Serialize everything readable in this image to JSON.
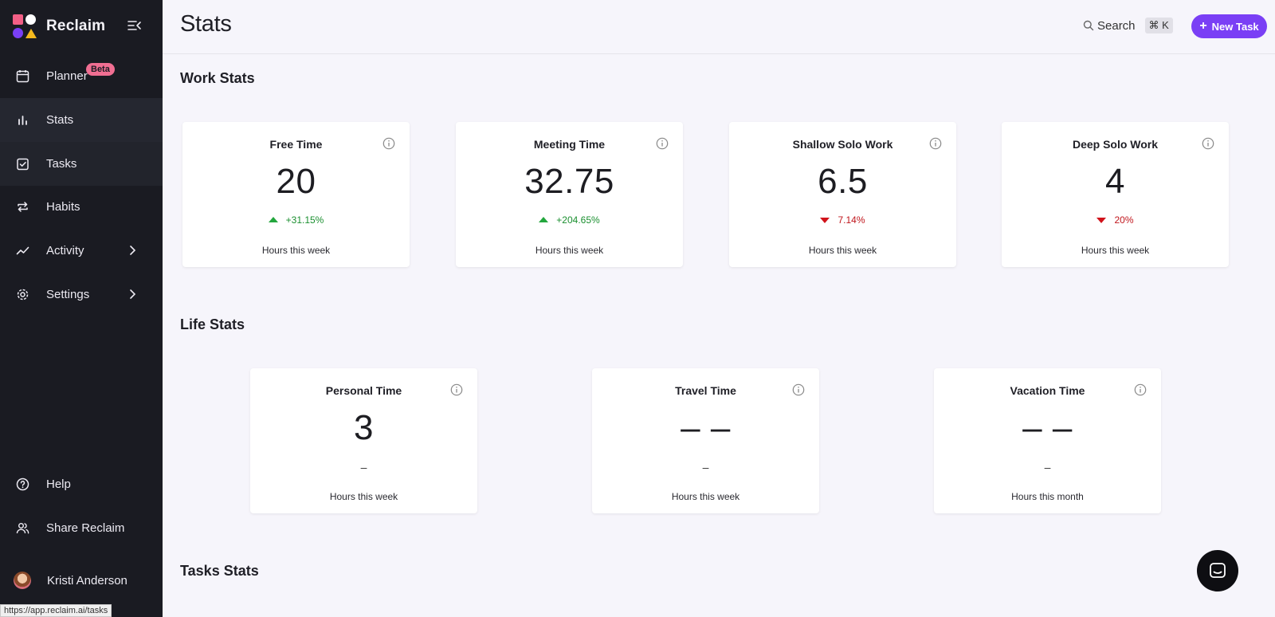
{
  "sidebar": {
    "brand": "Reclaim",
    "items": [
      {
        "label": "Planner",
        "badge": "Beta"
      },
      {
        "label": "Stats"
      },
      {
        "label": "Tasks"
      },
      {
        "label": "Habits"
      },
      {
        "label": "Activity"
      },
      {
        "label": "Settings"
      },
      {
        "label": "Help"
      },
      {
        "label": "Share Reclaim"
      }
    ],
    "user": "Kristi Anderson"
  },
  "status_url": "https://app.reclaim.ai/tasks",
  "header": {
    "title": "Stats",
    "search_label": "Search",
    "shortcut": "⌘ K",
    "new_task_label": "New Task"
  },
  "work_stats": {
    "title": "Work Stats",
    "cards": [
      {
        "title": "Free Time",
        "value": "20",
        "change": "+31.15%",
        "direction": "up",
        "sub": "Hours this week"
      },
      {
        "title": "Meeting Time",
        "value": "32.75",
        "change": "+204.65%",
        "direction": "up",
        "sub": "Hours this week"
      },
      {
        "title": "Shallow Solo Work",
        "value": "6.5",
        "change": "7.14%",
        "direction": "down",
        "sub": "Hours this week"
      },
      {
        "title": "Deep Solo Work",
        "value": "4",
        "change": "20%",
        "direction": "down",
        "sub": "Hours this week"
      }
    ]
  },
  "life_stats": {
    "title": "Life Stats",
    "cards": [
      {
        "title": "Personal Time",
        "value": "3",
        "change": "–",
        "direction": "none",
        "sub": "Hours this week"
      },
      {
        "title": "Travel Time",
        "value": "– –",
        "change": "–",
        "direction": "none",
        "sub": "Hours this week"
      },
      {
        "title": "Vacation Time",
        "value": "– –",
        "change": "–",
        "direction": "none",
        "sub": "Hours this month"
      }
    ]
  },
  "tasks_stats": {
    "title": "Tasks Stats"
  },
  "colors": {
    "accent": "#7a3ff5",
    "sidebar_bg": "#1a1b22",
    "up": "#1a8f2f",
    "down": "#c0161c",
    "badge": "#f06e92"
  }
}
